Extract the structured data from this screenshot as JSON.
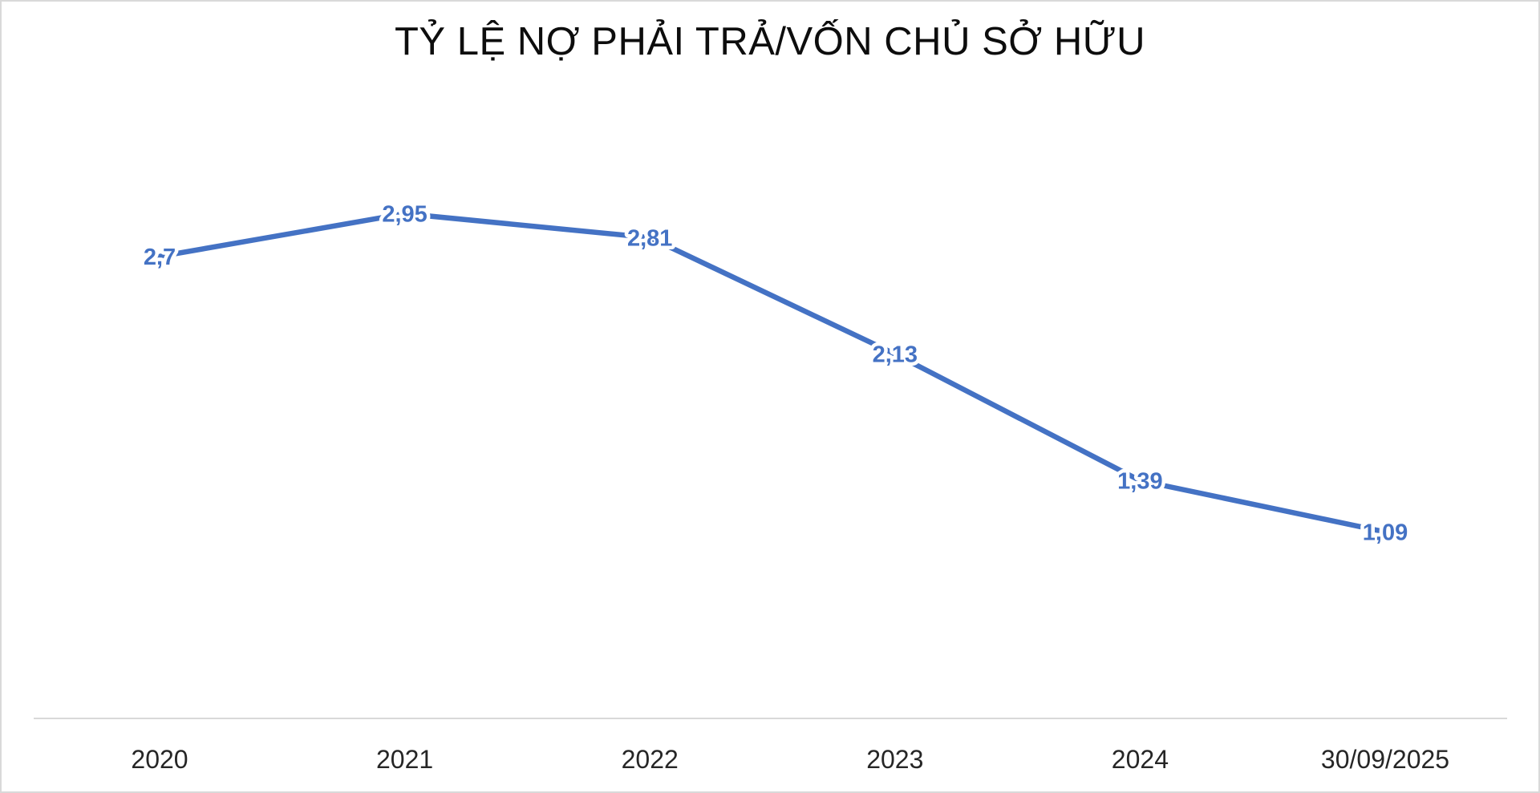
{
  "chart_data": {
    "type": "line",
    "title": "TỶ LỆ NỢ PHẢI TRẢ/VỐN CHỦ SỞ HỮU",
    "categories": [
      "2020",
      "2021",
      "2022",
      "2023",
      "2024",
      "30/09/2025"
    ],
    "series": [
      {
        "values": [
          2.7,
          2.95,
          2.81,
          2.13,
          1.39,
          1.09
        ],
        "data_labels": [
          "2,7",
          "2,95",
          "2,81",
          "2,13",
          "1,39",
          "1,09"
        ],
        "color": "#4472C4"
      }
    ],
    "xlabel": "",
    "ylabel": "",
    "ylim": [
      0,
      3.5
    ],
    "grid": false,
    "legend": "none",
    "y_axis_visible": false,
    "data_label_position": "center",
    "colors": {
      "line": "#4472C4",
      "data_label": "#4472C4",
      "x_axis_line": "#D9D9D9",
      "tick_label": "#262626",
      "title": "#0D0D0D",
      "background": "#FFFFFF",
      "frame_border": "#D9D9D9"
    }
  }
}
